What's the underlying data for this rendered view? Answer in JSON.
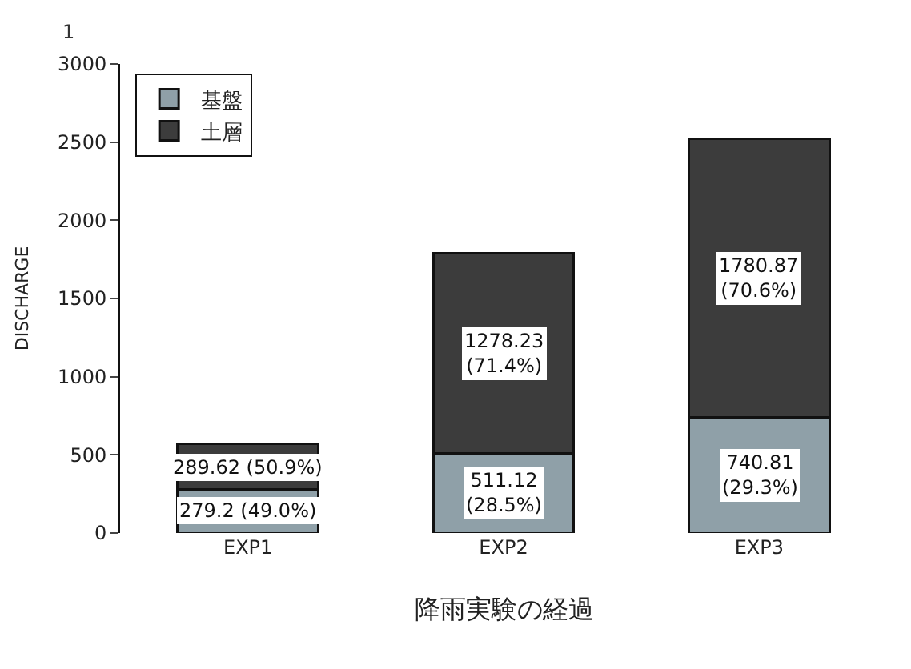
{
  "chart_data": {
    "type": "bar",
    "stacked": true,
    "title": "降雨実験の経過",
    "ylabel": "DISCHARGE",
    "categories": [
      "EXP1",
      "EXP2",
      "EXP3"
    ],
    "series": [
      {
        "name": "基盤",
        "color": "#8fa0a8",
        "values": [
          279.2,
          511.12,
          740.81
        ],
        "value_labels": [
          "279.2 (49.0%)",
          "511.12\n(28.5%)",
          "740.81\n(29.3%)"
        ]
      },
      {
        "name": "土層",
        "color": "#3c3c3c",
        "values": [
          289.62,
          1278.23,
          1780.87
        ],
        "value_labels": [
          "289.62 (50.9%)",
          "1278.23\n(71.4%)",
          "1780.87\n(70.6%)"
        ]
      }
    ],
    "ylim": [
      0,
      3000
    ],
    "yticks": [
      0,
      500,
      1000,
      1500,
      2000,
      2500,
      3000
    ],
    "legend": "top left",
    "annotations": [
      "1"
    ]
  }
}
